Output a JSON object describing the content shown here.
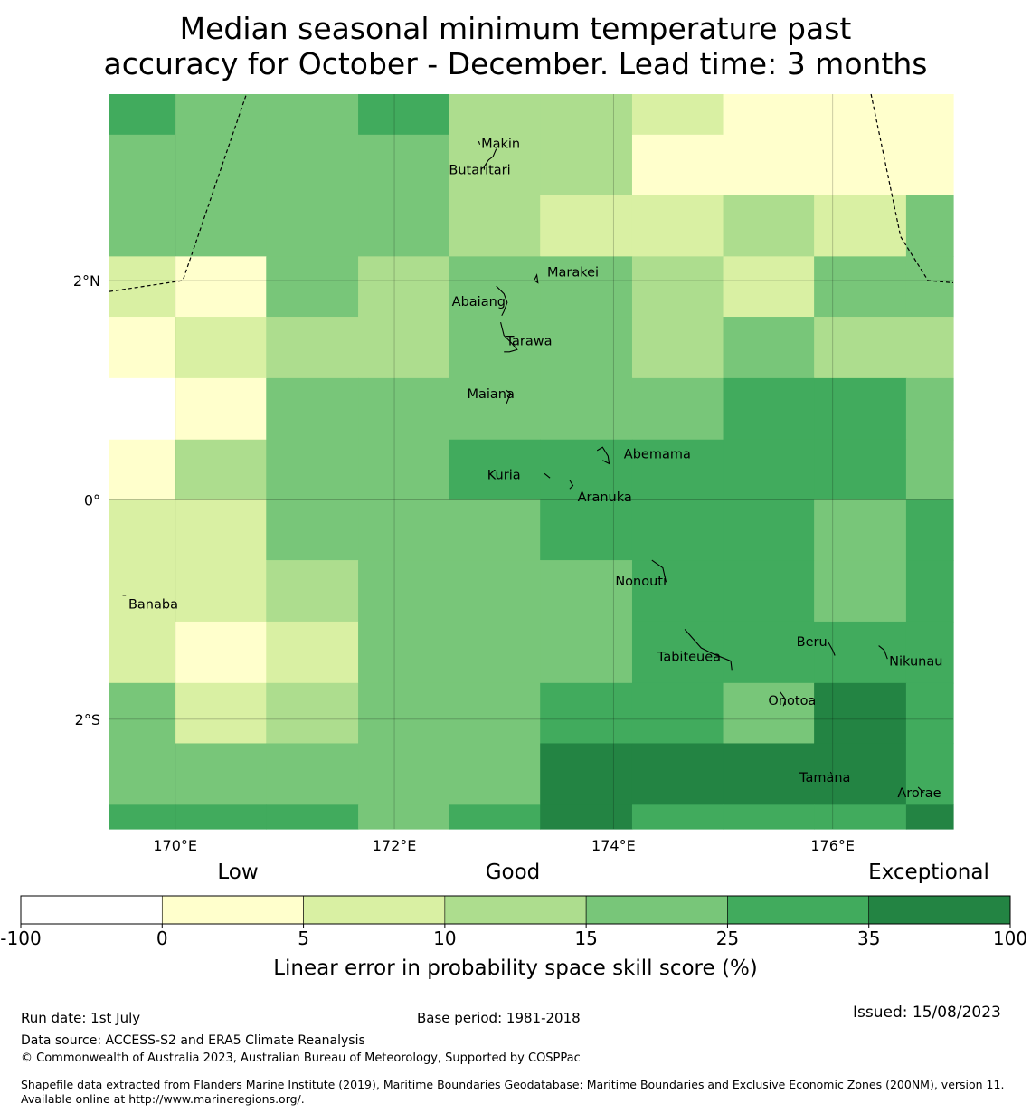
{
  "title": {
    "line1": "Median seasonal minimum temperature past",
    "line2": "accuracy for October - December. Lead time: 3 months"
  },
  "map": {
    "lon_range": [
      169.4,
      177.1
    ],
    "lat_range": [
      -3.0,
      3.7
    ],
    "grid_lon_edges": [
      169.4,
      170.0,
      170.83,
      171.67,
      172.5,
      173.33,
      174.17,
      175.0,
      175.83,
      176.67,
      177.1
    ],
    "grid_lat_edges": [
      3.7,
      3.33,
      2.78,
      2.22,
      1.67,
      1.11,
      0.55,
      0.0,
      -0.55,
      -1.11,
      -1.67,
      -2.22,
      -2.78,
      -3.0
    ],
    "skill_class_grid": [
      [
        6,
        5,
        5,
        6,
        4,
        4,
        3,
        2,
        2,
        2
      ],
      [
        5,
        5,
        5,
        5,
        4,
        4,
        2,
        2,
        2,
        2
      ],
      [
        5,
        5,
        5,
        5,
        4,
        3,
        3,
        4,
        3,
        5
      ],
      [
        3,
        2,
        5,
        4,
        5,
        5,
        4,
        3,
        5,
        5
      ],
      [
        2,
        3,
        4,
        4,
        5,
        5,
        4,
        5,
        4,
        4
      ],
      [
        1,
        2,
        5,
        5,
        5,
        5,
        5,
        6,
        6,
        5
      ],
      [
        2,
        4,
        5,
        5,
        6,
        6,
        6,
        6,
        6,
        5
      ],
      [
        3,
        3,
        5,
        5,
        5,
        6,
        6,
        6,
        5,
        6
      ],
      [
        3,
        3,
        4,
        5,
        5,
        5,
        6,
        6,
        5,
        6
      ],
      [
        3,
        2,
        3,
        5,
        5,
        5,
        6,
        6,
        6,
        6
      ],
      [
        5,
        3,
        4,
        5,
        5,
        6,
        6,
        5,
        7,
        6
      ],
      [
        5,
        5,
        5,
        5,
        5,
        7,
        7,
        7,
        7,
        6
      ],
      [
        6,
        6,
        6,
        5,
        6,
        7,
        6,
        6,
        6,
        7
      ]
    ],
    "x_ticks": [
      {
        "label": "170°E",
        "lon": 170
      },
      {
        "label": "172°E",
        "lon": 172
      },
      {
        "label": "174°E",
        "lon": 174
      },
      {
        "label": "176°E",
        "lon": 176
      }
    ],
    "y_ticks": [
      {
        "label": "2°N",
        "lat": 2
      },
      {
        "label": "0°",
        "lat": 0
      },
      {
        "label": "2°S",
        "lat": -2
      }
    ],
    "eez_boundary_west": [
      [
        169.4,
        1.9
      ],
      [
        170.07,
        2.0
      ],
      [
        170.65,
        3.7
      ]
    ],
    "eez_boundary_east": [
      [
        176.35,
        3.7
      ],
      [
        176.62,
        2.4
      ],
      [
        176.87,
        2.0
      ],
      [
        177.1,
        1.98
      ]
    ],
    "islands": [
      {
        "name": "Makin",
        "lon": 172.97,
        "lat": 3.25,
        "shape": [
          [
            172.77,
            3.27
          ],
          [
            172.78,
            3.24
          ]
        ]
      },
      {
        "name": "Butaritari",
        "lon": 172.78,
        "lat": 3.01,
        "shape": [
          [
            172.93,
            3.2
          ],
          [
            172.9,
            3.13
          ],
          [
            172.86,
            3.1
          ],
          [
            172.82,
            3.04
          ],
          [
            172.82,
            3.01
          ]
        ]
      },
      {
        "name": "Marakei",
        "lon": 173.63,
        "lat": 2.08,
        "shape": [
          [
            173.28,
            2.01
          ],
          [
            173.3,
            2.05
          ],
          [
            173.31,
            1.98
          ],
          [
            173.28,
            2.0
          ]
        ]
      },
      {
        "name": "Abaiang",
        "lon": 172.77,
        "lat": 1.81,
        "shape": [
          [
            172.93,
            1.95
          ],
          [
            173.0,
            1.88
          ],
          [
            173.03,
            1.8
          ],
          [
            173.0,
            1.72
          ],
          [
            172.98,
            1.68
          ]
        ]
      },
      {
        "name": "Tarawa",
        "lon": 173.23,
        "lat": 1.45,
        "shape": [
          [
            172.97,
            1.62
          ],
          [
            173.0,
            1.5
          ],
          [
            173.07,
            1.43
          ],
          [
            173.12,
            1.37
          ],
          [
            173.05,
            1.35
          ],
          [
            173.0,
            1.35
          ]
        ]
      },
      {
        "name": "Maiana",
        "lon": 172.88,
        "lat": 0.97,
        "shape": [
          [
            173.02,
            1.0
          ],
          [
            173.06,
            0.97
          ],
          [
            173.02,
            0.87
          ]
        ]
      },
      {
        "name": "Abemama",
        "lon": 174.4,
        "lat": 0.42,
        "shape": [
          [
            173.85,
            0.45
          ],
          [
            173.9,
            0.48
          ],
          [
            173.95,
            0.4
          ],
          [
            173.96,
            0.33
          ],
          [
            173.9,
            0.36
          ]
        ]
      },
      {
        "name": "Kuria",
        "lon": 173.0,
        "lat": 0.23,
        "shape": [
          [
            173.37,
            0.24
          ],
          [
            173.42,
            0.2
          ]
        ]
      },
      {
        "name": "Aranuka",
        "lon": 173.92,
        "lat": 0.03,
        "shape": [
          [
            173.6,
            0.18
          ],
          [
            173.63,
            0.13
          ],
          [
            173.6,
            0.1
          ]
        ]
      },
      {
        "name": "Nonouti",
        "lon": 174.25,
        "lat": -0.74,
        "shape": [
          [
            174.35,
            -0.55
          ],
          [
            174.45,
            -0.62
          ],
          [
            174.48,
            -0.75
          ]
        ]
      },
      {
        "name": "Banaba",
        "lon": 169.8,
        "lat": -0.95,
        "shape": [
          [
            169.52,
            -0.87
          ],
          [
            169.55,
            -0.87
          ]
        ]
      },
      {
        "name": "Tabiteuea",
        "lon": 174.69,
        "lat": -1.43,
        "shape": [
          [
            174.65,
            -1.18
          ],
          [
            174.72,
            -1.26
          ],
          [
            174.8,
            -1.35
          ],
          [
            174.9,
            -1.4
          ],
          [
            175.07,
            -1.47
          ],
          [
            175.08,
            -1.55
          ]
        ]
      },
      {
        "name": "Beru",
        "lon": 175.81,
        "lat": -1.29,
        "shape": [
          [
            175.96,
            -1.3
          ],
          [
            176.0,
            -1.37
          ],
          [
            176.02,
            -1.42
          ]
        ]
      },
      {
        "name": "Nikunau",
        "lon": 176.76,
        "lat": -1.47,
        "shape": [
          [
            176.42,
            -1.33
          ],
          [
            176.47,
            -1.37
          ],
          [
            176.5,
            -1.45
          ]
        ]
      },
      {
        "name": "Onotoa",
        "lon": 175.63,
        "lat": -1.83,
        "shape": [
          [
            175.52,
            -1.75
          ],
          [
            175.57,
            -1.82
          ],
          [
            175.55,
            -1.88
          ]
        ]
      },
      {
        "name": "Tamana",
        "lon": 175.93,
        "lat": -2.53,
        "shape": [
          [
            175.98,
            -2.48
          ],
          [
            175.99,
            -2.5
          ]
        ]
      },
      {
        "name": "Arorae",
        "lon": 176.79,
        "lat": -2.67,
        "shape": [
          [
            176.78,
            -2.62
          ],
          [
            176.83,
            -2.67
          ]
        ]
      }
    ]
  },
  "legend": {
    "category_labels": [
      "Low",
      "Good",
      "Exceptional"
    ],
    "boundaries": [
      "-100",
      "0",
      "5",
      "10",
      "15",
      "25",
      "35",
      "100"
    ],
    "colors": [
      "#ffffff",
      "#ffffcc",
      "#d9f0a3",
      "#addd8e",
      "#78c679",
      "#41ab5d",
      "#238443"
    ],
    "axis_label": "Linear error in probability space skill score (%)"
  },
  "footer": {
    "run_date": "Run date: 1st July",
    "base_period": "Base period: 1981-2018",
    "issued": "Issued: 15/08/2023",
    "data_source": "Data source: ACCESS-S2 and ERA5 Climate Reanalysis",
    "copyright": "© Commonwealth of Australia 2023, Australian Bureau of Meteorology, Supported by COSPPac",
    "shapefile_note": "Shapefile data extracted from Flanders Marine Institute (2019), Maritime Boundaries Geodatabase: Maritime Boundaries and Exclusive Economic Zones (200NM), version 11. Available online at http://www.marineregions.org/."
  }
}
